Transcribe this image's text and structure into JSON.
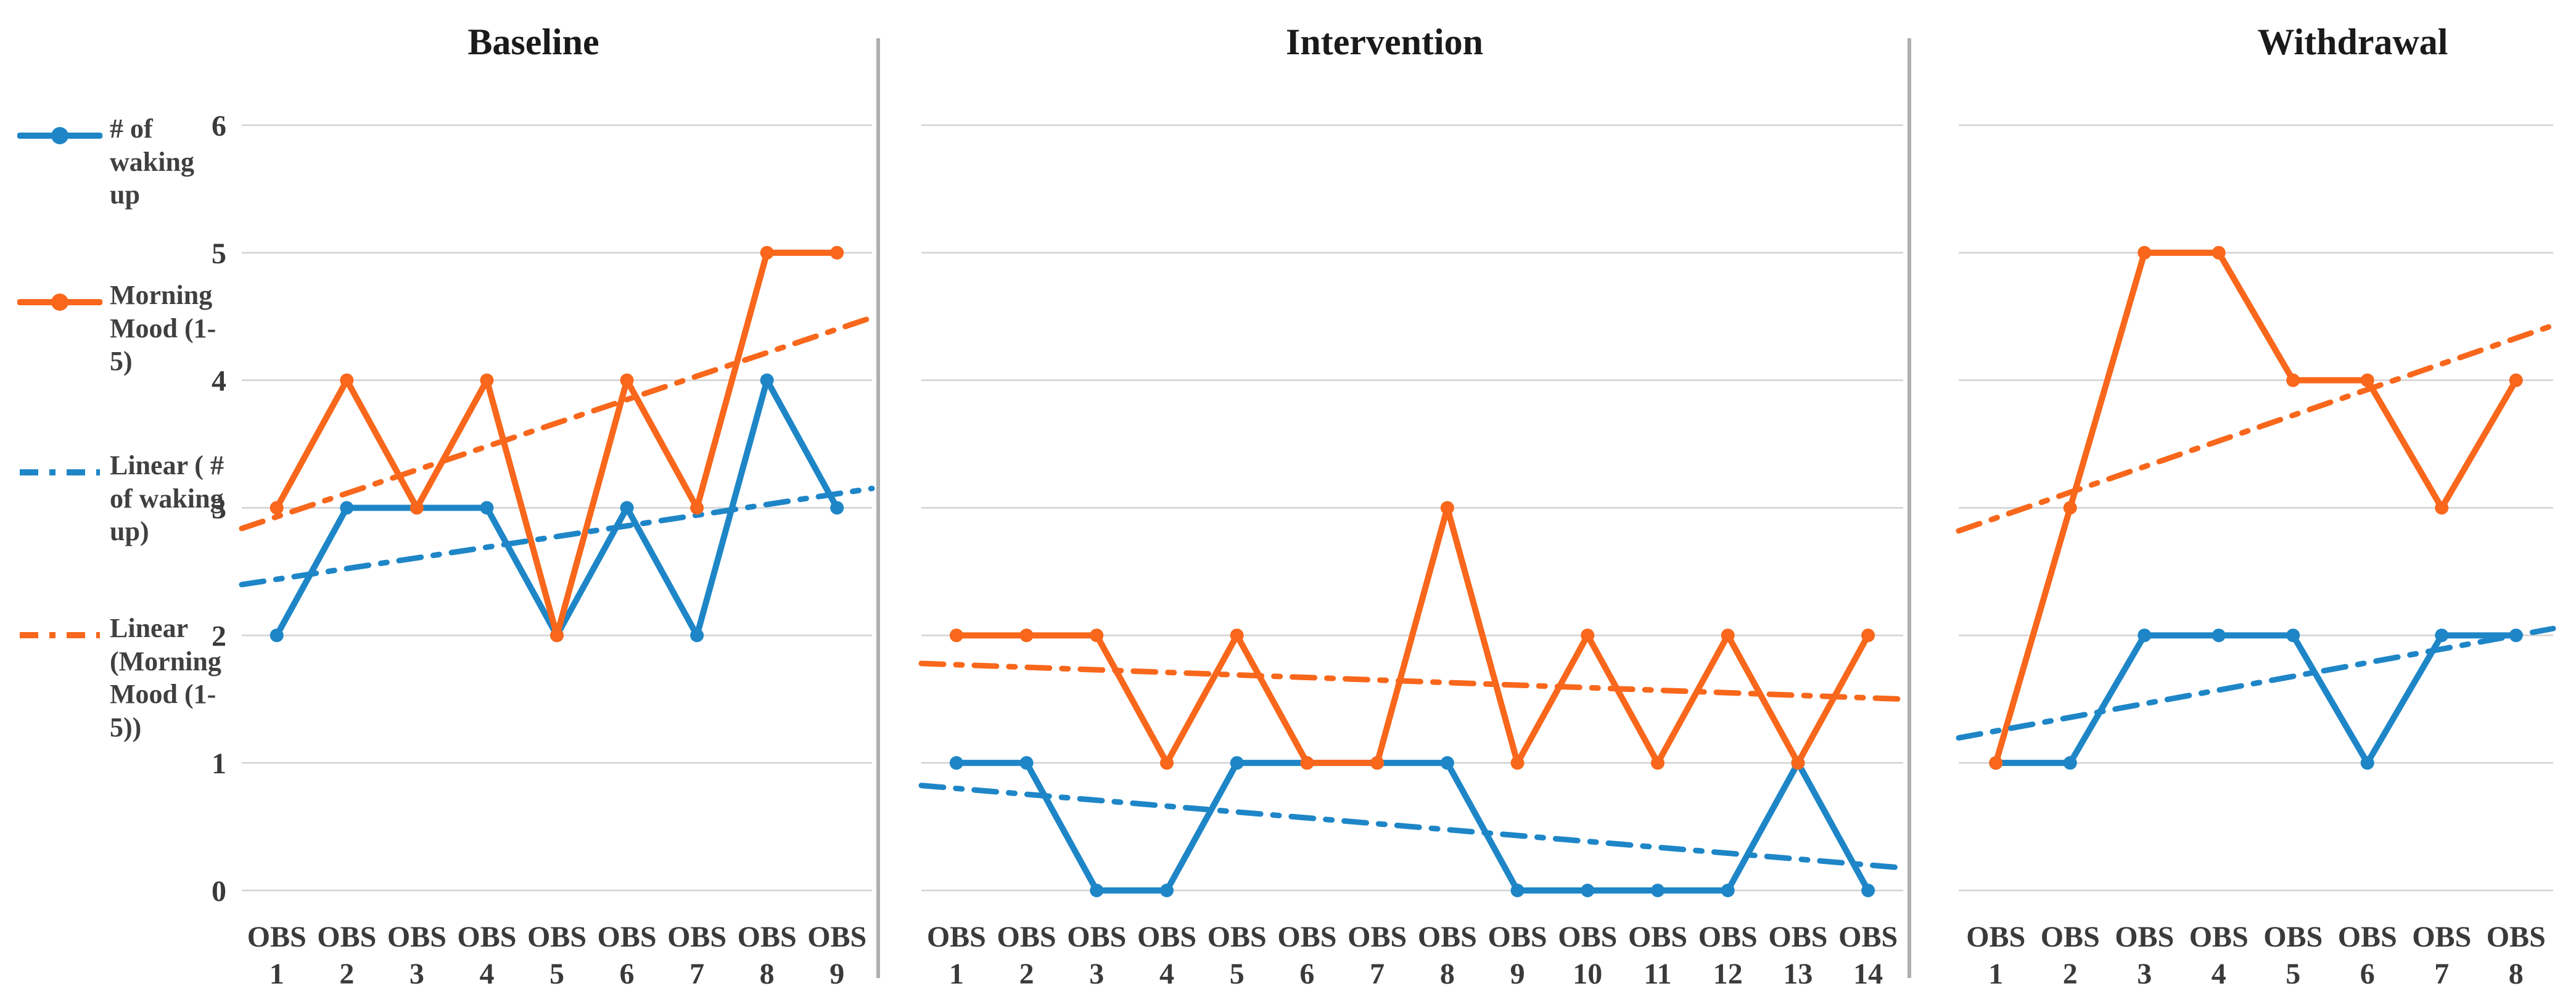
{
  "colors": {
    "blue": "#1E86C7",
    "orange": "#F8671B",
    "gridline": "#D2D2D2",
    "separator": "#AFAFAF",
    "axis_text": "#3A3A3A",
    "legend_text": "#404040",
    "title_text": "#1A1A1A",
    "background": "#FFFFFF"
  },
  "legend": {
    "items": [
      {
        "label": "# of\nwaking\nup",
        "color_key": "blue",
        "style": "solid-marker"
      },
      {
        "label": "Morning\nMood (1-\n5)",
        "color_key": "orange",
        "style": "solid-marker"
      },
      {
        "label": "Linear ( #\nof waking\nup)",
        "color_key": "blue",
        "style": "dash-dot"
      },
      {
        "label": "Linear\n(Morning\nMood (1-\n5))",
        "color_key": "orange",
        "style": "dash-dot"
      }
    ]
  },
  "y_axis": {
    "min": 0,
    "max": 6,
    "ticks": [
      6,
      5,
      4,
      3,
      2,
      1,
      0
    ]
  },
  "chart_data": {
    "type": "line",
    "grid": true,
    "ylim": [
      0,
      6
    ],
    "panels": [
      {
        "title": "Baseline",
        "categories": [
          "OBS 1",
          "OBS 2",
          "OBS 3",
          "OBS 4",
          "OBS 5",
          "OBS 6",
          "OBS 7",
          "OBS 8",
          "OBS 9"
        ],
        "series": [
          {
            "name": "# of waking up",
            "color_key": "blue",
            "values": [
              2,
              3,
              3,
              3,
              2,
              3,
              2,
              4,
              3
            ]
          },
          {
            "name": "Morning Mood (1-5)",
            "color_key": "orange",
            "values": [
              3,
              4,
              3,
              4,
              2,
              4,
              3,
              5,
              5
            ]
          }
        ],
        "trendlines": [
          {
            "name": "Linear ( # of waking up)",
            "color_key": "blue",
            "start": 2.44,
            "end": 3.11
          },
          {
            "name": "Linear (Morning Mood (1-5))",
            "color_key": "orange",
            "start": 2.93,
            "end": 4.4
          }
        ]
      },
      {
        "title": "Intervention",
        "categories": [
          "OBS 1",
          "OBS 2",
          "OBS 3",
          "OBS 4",
          "OBS 5",
          "OBS 6",
          "OBS 7",
          "OBS 8",
          "OBS 9",
          "OBS 10",
          "OBS 11",
          "OBS 12",
          "OBS 13",
          "OBS 14"
        ],
        "series": [
          {
            "name": "# of waking up",
            "color_key": "blue",
            "values": [
              1,
              1,
              0,
              0,
              1,
              1,
              1,
              1,
              0,
              0,
              0,
              0,
              1,
              0
            ]
          },
          {
            "name": "Morning Mood (1-5)",
            "color_key": "orange",
            "values": [
              2,
              2,
              2,
              1,
              2,
              1,
              1,
              3,
              1,
              2,
              1,
              2,
              1,
              2
            ]
          }
        ],
        "trendlines": [
          {
            "name": "Linear ( # of waking up)",
            "color_key": "blue",
            "start": 0.8,
            "end": 0.2
          },
          {
            "name": "Linear (Morning Mood (1-5))",
            "color_key": "orange",
            "start": 1.77,
            "end": 1.51
          }
        ]
      },
      {
        "title": "Withdrawal",
        "categories": [
          "OBS 1",
          "OBS 2",
          "OBS 3",
          "OBS 4",
          "OBS 5",
          "OBS 6",
          "OBS 7",
          "OBS 8"
        ],
        "series": [
          {
            "name": "# of waking up",
            "color_key": "blue",
            "values": [
              1,
              1,
              2,
              2,
              2,
              1,
              2,
              2
            ]
          },
          {
            "name": "Morning Mood (1-5)",
            "color_key": "orange",
            "values": [
              1,
              3,
              5,
              5,
              4,
              4,
              3,
              4
            ]
          }
        ],
        "trendlines": [
          {
            "name": "Linear ( # of waking up)",
            "color_key": "blue",
            "start": 1.25,
            "end": 2.0
          },
          {
            "name": "Linear (Morning Mood (1-5))",
            "color_key": "orange",
            "start": 2.92,
            "end": 4.33
          }
        ]
      }
    ]
  }
}
